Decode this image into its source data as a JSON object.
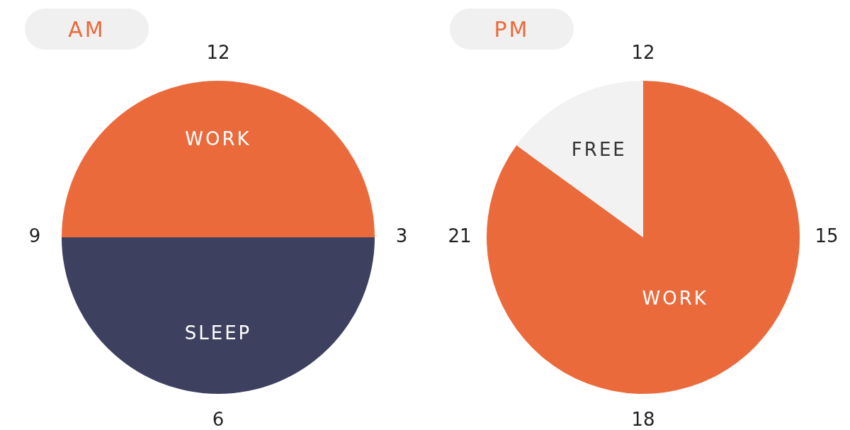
{
  "chart_data": [
    {
      "type": "pie",
      "title": "AM",
      "categories": [
        "WORK",
        "SLEEP"
      ],
      "values": [
        50,
        50
      ],
      "colors": [
        "#eb6a3b",
        "#3d405e"
      ],
      "annotations": [
        "12",
        "3",
        "6",
        "9"
      ]
    },
    {
      "type": "pie",
      "title": "PM",
      "categories": [
        "WORK",
        "FREE"
      ],
      "values": [
        85,
        15
      ],
      "colors": [
        "#eb6a3b",
        "#f2f2f2"
      ],
      "annotations": [
        "12",
        "15",
        "18",
        "21"
      ]
    }
  ]
}
